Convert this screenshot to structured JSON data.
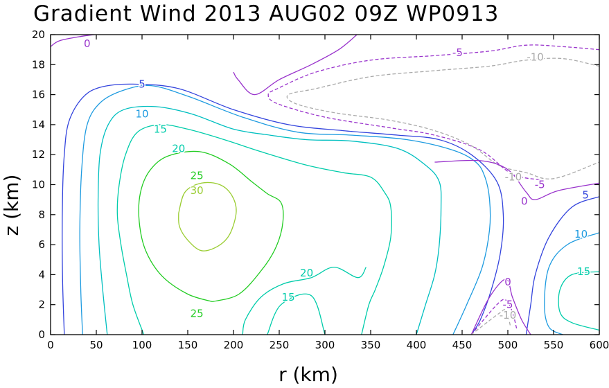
{
  "chart_data": {
    "type": "contour",
    "title": "Gradient Wind 2013 AUG02 09Z   WP0913",
    "xlabel": "r (km)",
    "ylabel": "z (km)",
    "xlim": [
      0,
      600
    ],
    "ylim": [
      0,
      20
    ],
    "x_ticks": [
      "0",
      "50",
      "100",
      "150",
      "200",
      "250",
      "300",
      "350",
      "400",
      "450",
      "500",
      "550",
      "600"
    ],
    "y_ticks": [
      "0",
      "2",
      "4",
      "6",
      "8",
      "10",
      "12",
      "14",
      "16",
      "18",
      "20"
    ],
    "grid": false,
    "contours": [
      {
        "level": 30,
        "color": "#9acd32",
        "dashed": false,
        "points": [
          [
            140,
            8.1
          ],
          [
            147,
            9.5
          ],
          [
            165,
            10.1
          ],
          [
            185,
            10
          ],
          [
            198,
            9.3
          ],
          [
            203,
            8.2
          ],
          [
            196,
            6.7
          ],
          [
            183,
            5.9
          ],
          [
            165,
            5.6
          ],
          [
            150,
            6.3
          ],
          [
            141,
            7.2
          ],
          [
            140,
            8.1
          ]
        ]
      },
      {
        "level": 25,
        "color": "#22cc22",
        "dashed": false,
        "points": [
          [
            177,
            2.2
          ],
          [
            150,
            2.7
          ],
          [
            122,
            3.9
          ],
          [
            104,
            5.6
          ],
          [
            97,
            7.5
          ],
          [
            98,
            9.4
          ],
          [
            108,
            10.9
          ],
          [
            128,
            11.9
          ],
          [
            163,
            12.2
          ],
          [
            195,
            11.4
          ],
          [
            220,
            10.2
          ],
          [
            237,
            9.4
          ],
          [
            252,
            8.8
          ],
          [
            254,
            7.5
          ],
          [
            247,
            5.9
          ],
          [
            232,
            4.4
          ],
          [
            206,
            2.7
          ],
          [
            177,
            2.2
          ]
        ]
      },
      {
        "level": 20,
        "color": "#00ccaa",
        "dashed": false,
        "points": [
          [
            102,
            0
          ],
          [
            90,
            2
          ],
          [
            83,
            4
          ],
          [
            77,
            6
          ],
          [
            73,
            8
          ],
          [
            75,
            10
          ],
          [
            82,
            12
          ],
          [
            95,
            13.5
          ],
          [
            120,
            14
          ],
          [
            150,
            13.7
          ],
          [
            190,
            13
          ],
          [
            230,
            12.2
          ],
          [
            280,
            11.3
          ],
          [
            320,
            10.8
          ],
          [
            350,
            10.5
          ],
          [
            365,
            9.5
          ],
          [
            372,
            8.5
          ],
          [
            372,
            6.5
          ],
          [
            364,
            4.5
          ],
          [
            355,
            3
          ],
          [
            348,
            2
          ],
          [
            340,
            0
          ]
        ]
      },
      {
        "level": 20,
        "color": "#00ccaa",
        "dashed": false,
        "points": [
          [
            210,
            0
          ],
          [
            213,
            1
          ],
          [
            230,
            2.5
          ],
          [
            255,
            3.4
          ],
          [
            285,
            3.8
          ],
          [
            310,
            4.5
          ],
          [
            336,
            3.8
          ],
          [
            345,
            4.5
          ]
        ]
      },
      {
        "level": 15,
        "color": "#00ccaa",
        "dashed": false,
        "points": [
          [
            237,
            0
          ],
          [
            252,
            2
          ],
          [
            285,
            2.6
          ],
          [
            300,
            0
          ]
        ]
      },
      {
        "level": 15,
        "color": "#00bfc0",
        "dashed": false,
        "points": [
          [
            62,
            0
          ],
          [
            57,
            3
          ],
          [
            53,
            6
          ],
          [
            52,
            9
          ],
          [
            54,
            12
          ],
          [
            63,
            14
          ],
          [
            80,
            15
          ],
          [
            115,
            15.2
          ],
          [
            155,
            14.7
          ],
          [
            200,
            13.7
          ],
          [
            240,
            13.3
          ],
          [
            280,
            13
          ],
          [
            330,
            12.9
          ],
          [
            380,
            12.4
          ],
          [
            410,
            11.3
          ],
          [
            425,
            10.2
          ],
          [
            427,
            8.5
          ],
          [
            425,
            6
          ],
          [
            420,
            4
          ],
          [
            410,
            2
          ],
          [
            400,
            0
          ]
        ]
      },
      {
        "level": 10,
        "color": "#1e9be0",
        "dashed": false,
        "points": [
          [
            35,
            0
          ],
          [
            33,
            3
          ],
          [
            32,
            7
          ],
          [
            34,
            11
          ],
          [
            40,
            14
          ],
          [
            55,
            15.5
          ],
          [
            80,
            16.3
          ],
          [
            110,
            16.6
          ],
          [
            150,
            15.9
          ],
          [
            210,
            14.5
          ],
          [
            270,
            13.5
          ],
          [
            330,
            13.3
          ],
          [
            390,
            13
          ],
          [
            440,
            12.3
          ],
          [
            465,
            11.5
          ],
          [
            475,
            10.5
          ],
          [
            480,
            9
          ],
          [
            480,
            7
          ],
          [
            472,
            4.5
          ],
          [
            455,
            2
          ],
          [
            440,
            0
          ]
        ]
      },
      {
        "level": 5,
        "color": "#3344dd",
        "dashed": false,
        "points": [
          [
            15,
            0
          ],
          [
            13,
            4
          ],
          [
            13,
            9
          ],
          [
            15,
            12
          ],
          [
            20,
            14.2
          ],
          [
            35,
            15.8
          ],
          [
            55,
            16.5
          ],
          [
            90,
            16.7
          ],
          [
            140,
            16.4
          ],
          [
            200,
            15
          ],
          [
            260,
            14
          ],
          [
            320,
            13.6
          ],
          [
            380,
            13.3
          ],
          [
            425,
            13
          ],
          [
            460,
            12
          ],
          [
            488,
            10.2
          ],
          [
            495,
            8
          ],
          [
            492,
            5.5
          ],
          [
            482,
            3
          ],
          [
            470,
            1
          ],
          [
            460,
            0
          ]
        ]
      },
      {
        "level": 0,
        "color": "#9933cc",
        "dashed": false,
        "points": [
          [
            0,
            19.2
          ],
          [
            10,
            19.6
          ],
          [
            35,
            19.9
          ],
          [
            48,
            20
          ]
        ]
      },
      {
        "level": 0,
        "color": "#9933cc",
        "dashed": false,
        "points": [
          [
            335,
            20
          ],
          [
            315,
            19
          ],
          [
            285,
            18
          ],
          [
            250,
            17
          ],
          [
            223,
            16
          ],
          [
            205,
            17
          ],
          [
            200,
            17.5
          ]
        ]
      },
      {
        "level": -5,
        "color": "#9933cc",
        "dashed": true,
        "points": [
          [
            600,
            19
          ],
          [
            560,
            19.2
          ],
          [
            520,
            19.3
          ],
          [
            480,
            18.9
          ],
          [
            420,
            18.6
          ],
          [
            350,
            18.3
          ],
          [
            290,
            17.5
          ],
          [
            248,
            16.4
          ],
          [
            238,
            16
          ],
          [
            248,
            15.4
          ],
          [
            300,
            14.5
          ],
          [
            370,
            13.8
          ],
          [
            420,
            13.3
          ],
          [
            470,
            12.3
          ],
          [
            505,
            10.7
          ],
          [
            540,
            10.3
          ]
        ]
      },
      {
        "level": -10,
        "color": "#aaaaaa",
        "dashed": true,
        "points": [
          [
            600,
            17.9
          ],
          [
            560,
            18.4
          ],
          [
            520,
            18.3
          ],
          [
            480,
            17.9
          ],
          [
            420,
            17.6
          ],
          [
            350,
            17.2
          ],
          [
            290,
            16.4
          ],
          [
            260,
            16
          ],
          [
            268,
            15.4
          ],
          [
            310,
            14.8
          ],
          [
            370,
            14.3
          ],
          [
            420,
            13.6
          ],
          [
            460,
            12.6
          ],
          [
            490,
            11.3
          ],
          [
            520,
            10.8
          ],
          [
            550,
            10.4
          ],
          [
            600,
            11.5
          ]
        ]
      },
      {
        "level": 0,
        "color": "#9933cc",
        "dashed": false,
        "points": [
          [
            420,
            11.5
          ],
          [
            470,
            11.6
          ],
          [
            500,
            11
          ],
          [
            520,
            9.5
          ],
          [
            530,
            9
          ],
          [
            555,
            9.6
          ],
          [
            600,
            10.1
          ]
        ]
      },
      {
        "level": 5,
        "color": "#3344dd",
        "dashed": false,
        "points": [
          [
            600,
            9.2
          ],
          [
            570,
            8.5
          ],
          [
            545,
            6.5
          ],
          [
            530,
            4
          ],
          [
            525,
            2
          ],
          [
            520,
            0
          ]
        ]
      },
      {
        "level": 10,
        "color": "#1e9be0",
        "dashed": false,
        "points": [
          [
            600,
            6.8
          ],
          [
            565,
            6
          ],
          [
            545,
            4.5
          ],
          [
            540,
            2
          ],
          [
            545,
            0.5
          ],
          [
            560,
            0
          ]
        ]
      },
      {
        "level": 15,
        "color": "#00ccaa",
        "dashed": false,
        "points": [
          [
            600,
            4.2
          ],
          [
            570,
            4
          ],
          [
            557,
            3
          ],
          [
            557,
            1.5
          ],
          [
            570,
            0.8
          ],
          [
            600,
            0.3
          ]
        ]
      },
      {
        "level": 0,
        "color": "#9933cc",
        "dashed": false,
        "points": [
          [
            460,
            0
          ],
          [
            480,
            2.5
          ],
          [
            498,
            3.7
          ],
          [
            505,
            2.5
          ],
          [
            515,
            1
          ],
          [
            525,
            0
          ]
        ]
      },
      {
        "level": -5,
        "color": "#9933cc",
        "dashed": true,
        "points": [
          [
            460,
            0
          ],
          [
            488,
            2
          ],
          [
            498,
            2.3
          ],
          [
            505,
            1.5
          ],
          [
            510,
            0.3
          ]
        ]
      },
      {
        "level": -10,
        "color": "#aaaaaa",
        "dashed": true,
        "points": [
          [
            460,
            0
          ],
          [
            490,
            1.4
          ],
          [
            498,
            1.6
          ],
          [
            503,
            0.5
          ]
        ]
      }
    ],
    "labels": [
      {
        "text": "0",
        "x": 40,
        "y": 19.4,
        "color": "#9933cc"
      },
      {
        "text": "5",
        "x": 100,
        "y": 16.7,
        "color": "#3344dd"
      },
      {
        "text": "10",
        "x": 100,
        "y": 14.7,
        "color": "#1e9be0"
      },
      {
        "text": "15",
        "x": 120,
        "y": 13.7,
        "color": "#00ccaa"
      },
      {
        "text": "20",
        "x": 140,
        "y": 12.4,
        "color": "#00ccaa"
      },
      {
        "text": "25",
        "x": 160,
        "y": 10.6,
        "color": "#22cc22"
      },
      {
        "text": "30",
        "x": 160,
        "y": 9.6,
        "color": "#9acd32"
      },
      {
        "text": "20",
        "x": 280,
        "y": 4.1,
        "color": "#00ccaa"
      },
      {
        "text": "15",
        "x": 260,
        "y": 2.5,
        "color": "#00ccaa"
      },
      {
        "text": "25",
        "x": 160,
        "y": 1.4,
        "color": "#22cc22"
      },
      {
        "text": "-5",
        "x": 445,
        "y": 18.8,
        "color": "#9933cc"
      },
      {
        "text": "-10",
        "x": 530,
        "y": 18.5,
        "color": "#aaaaaa"
      },
      {
        "text": "-10",
        "x": 506,
        "y": 10.5,
        "color": "#aaaaaa"
      },
      {
        "text": "-5",
        "x": 535,
        "y": 10,
        "color": "#9933cc"
      },
      {
        "text": "0",
        "x": 518,
        "y": 8.9,
        "color": "#9933cc"
      },
      {
        "text": "5",
        "x": 585,
        "y": 9.3,
        "color": "#3344dd"
      },
      {
        "text": "10",
        "x": 580,
        "y": 6.7,
        "color": "#1e9be0"
      },
      {
        "text": "15",
        "x": 583,
        "y": 4.2,
        "color": "#00ccaa"
      },
      {
        "text": "0",
        "x": 500,
        "y": 3.5,
        "color": "#9933cc"
      },
      {
        "text": "-5",
        "x": 500,
        "y": 2,
        "color": "#9933cc"
      },
      {
        "text": "-10",
        "x": 500,
        "y": 1.3,
        "color": "#aaaaaa"
      }
    ]
  }
}
